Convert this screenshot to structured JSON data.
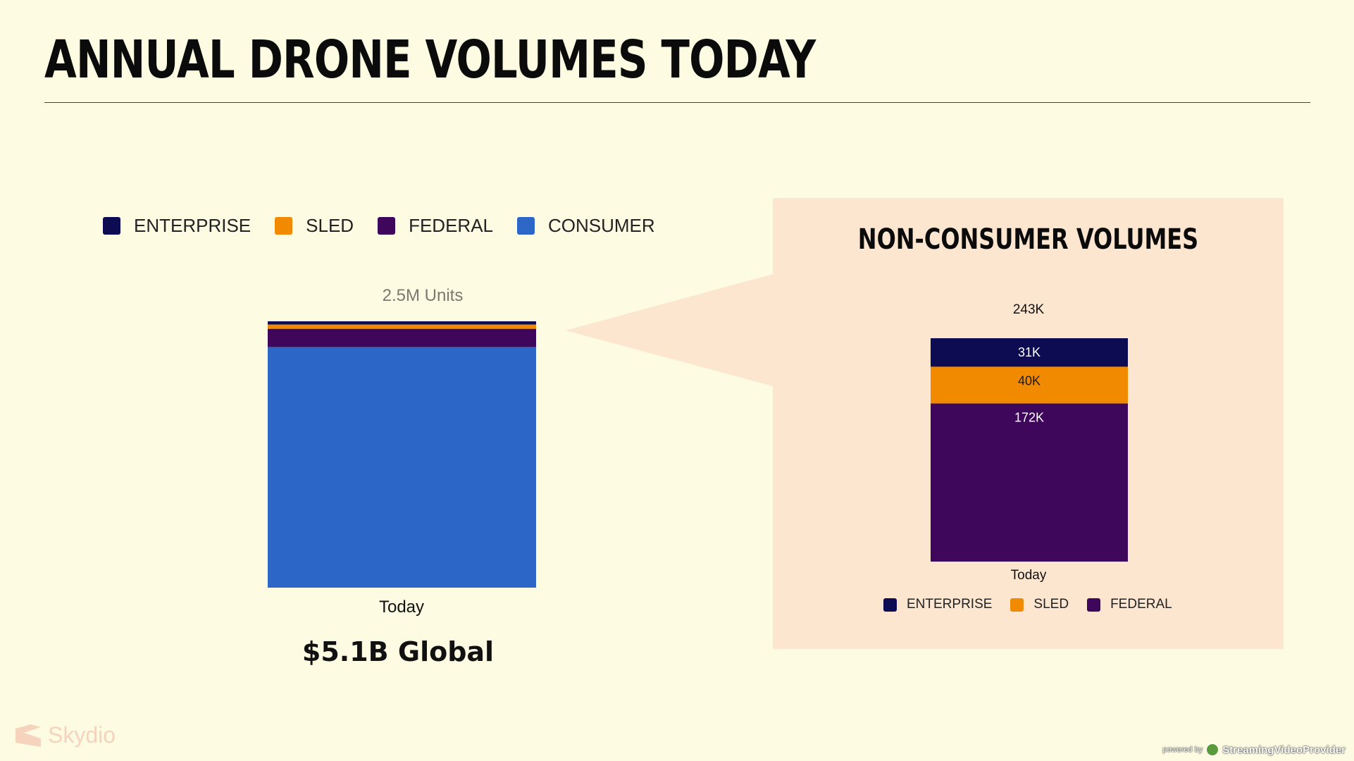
{
  "slide": {
    "title": "ANNUAL DRONE VOLUMES TODAY"
  },
  "colors": {
    "enterprise": "#0d0c52",
    "sled": "#f28a00",
    "federal": "#3e075c",
    "consumer": "#2c67c7",
    "background": "#fdfbe2",
    "panel": "#fde6cf"
  },
  "legend_main": [
    {
      "label": "ENTERPRISE",
      "color": "#0d0c52"
    },
    {
      "label": "SLED",
      "color": "#f28a00"
    },
    {
      "label": "FEDERAL",
      "color": "#3e075c"
    },
    {
      "label": "CONSUMER",
      "color": "#2c67c7"
    }
  ],
  "left_chart": {
    "total_label": "2.5M Units",
    "xtick": "Today",
    "caption": "$5.1B Global"
  },
  "right_panel": {
    "title": "NON-CONSUMER VOLUMES",
    "total_label": "243K",
    "xtick": "Today",
    "legend": [
      {
        "label": "ENTERPRISE",
        "color": "#0d0c52"
      },
      {
        "label": "SLED",
        "color": "#f28a00"
      },
      {
        "label": "FEDERAL",
        "color": "#3e075c"
      }
    ]
  },
  "chart_data": [
    {
      "type": "bar",
      "stacked": true,
      "categories": [
        "Today"
      ],
      "total": "2.5M Units",
      "series": [
        {
          "name": "ENTERPRISE",
          "values": [
            31000
          ],
          "color": "#0d0c52"
        },
        {
          "name": "SLED",
          "values": [
            40000
          ],
          "color": "#f28a00"
        },
        {
          "name": "FEDERAL",
          "values": [
            172000
          ],
          "color": "#3e075c"
        },
        {
          "name": "CONSUMER",
          "values": [
            2257000
          ],
          "color": "#2c67c7"
        }
      ],
      "legend": "top",
      "caption": "$5.1B Global"
    },
    {
      "type": "bar",
      "stacked": true,
      "title": "NON-CONSUMER VOLUMES",
      "categories": [
        "Today"
      ],
      "total": "243K",
      "series": [
        {
          "name": "ENTERPRISE",
          "values": [
            31000
          ],
          "label": "31K",
          "color": "#0d0c52"
        },
        {
          "name": "SLED",
          "values": [
            40000
          ],
          "label": "40K",
          "color": "#f28a00"
        },
        {
          "name": "FEDERAL",
          "values": [
            172000
          ],
          "label": "172K",
          "color": "#3e075c"
        }
      ],
      "legend": "bottom"
    }
  ],
  "branding": {
    "logo_text": "Skydio",
    "powered_by": "powered by",
    "provider": "StreamingVideoProvider"
  }
}
